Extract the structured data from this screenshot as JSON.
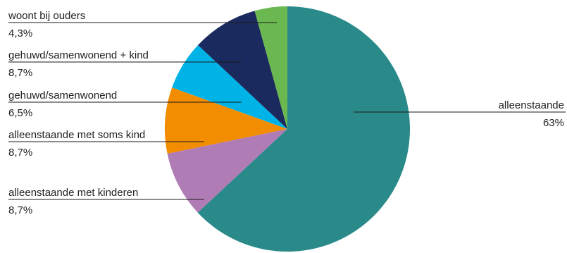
{
  "chart_data": {
    "type": "pie",
    "unit": "%",
    "slices": [
      {
        "name": "alleenstaande",
        "value": 63,
        "display": "63%",
        "color": "#2a8a8a"
      },
      {
        "name": "alleenstaande met kinderen",
        "value": 8.7,
        "display": "8,7%",
        "color": "#b07cb6"
      },
      {
        "name": "alleenstaande met soms kind",
        "value": 8.7,
        "display": "8,7%",
        "color": "#f28c00"
      },
      {
        "name": "gehuwd/samenwonend",
        "value": 6.5,
        "display": "6,5%",
        "color": "#00b3e6"
      },
      {
        "name": "gehuwd/samenwonend + kind",
        "value": 8.7,
        "display": "8,7%",
        "color": "#1b2a5e"
      },
      {
        "name": "woont bij ouders",
        "value": 4.3,
        "display": "4,3%",
        "color": "#6ab84f"
      }
    ]
  }
}
